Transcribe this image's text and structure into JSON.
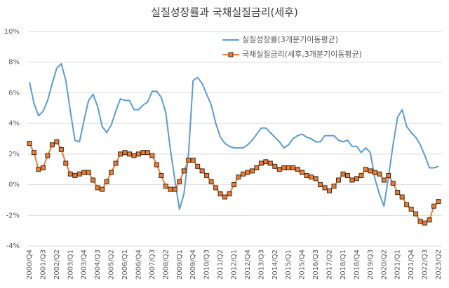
{
  "chart_data": {
    "type": "line",
    "title": "실질성장률과 국채실질금리(세후)",
    "categories": [
      "2000/Q4",
      null,
      null,
      "2001/Q3",
      null,
      null,
      "2002/Q2",
      null,
      null,
      "2003/Q1",
      null,
      null,
      "2003/Q4",
      null,
      null,
      "2004/Q3",
      null,
      null,
      "2005/Q2",
      null,
      null,
      "2006/Q1",
      null,
      null,
      "2006/Q4",
      null,
      null,
      "2007/Q3",
      null,
      null,
      "2008/Q2",
      null,
      null,
      "2009/Q1",
      null,
      null,
      "2009/Q4",
      null,
      null,
      "2010/Q3",
      null,
      null,
      "2011/Q2",
      null,
      null,
      "2012/Q1",
      null,
      null,
      "2012/Q4",
      null,
      null,
      "2013/Q3",
      null,
      null,
      "2014/Q2",
      null,
      null,
      "2015/Q1",
      null,
      null,
      "2015/Q4",
      null,
      null,
      "2016/Q3",
      null,
      null,
      "2017/Q2",
      null,
      null,
      "2018/Q1",
      null,
      null,
      "2018/Q4",
      null,
      null,
      "2019/Q3",
      null,
      null,
      "2020/Q2",
      null,
      null,
      "2021/Q1",
      null,
      null,
      "2021/Q4",
      null,
      null,
      "2022/Q3",
      null,
      null,
      "2023/Q2"
    ],
    "series": [
      {
        "name": "실질성장률(3개분기이동평균)",
        "color": "#5b9bd5",
        "values": [
          6.7,
          5.3,
          4.5,
          4.8,
          5.5,
          6.6,
          7.6,
          7.9,
          6.8,
          4.8,
          2.9,
          2.8,
          4.2,
          5.5,
          5.9,
          5.1,
          3.8,
          3.4,
          3.9,
          4.8,
          5.6,
          5.5,
          5.5,
          4.9,
          4.9,
          5.2,
          5.4,
          6.1,
          6.1,
          5.7,
          4.7,
          2.3,
          0.3,
          -1.6,
          -0.6,
          2.0,
          6.8,
          7.0,
          6.6,
          5.9,
          5.2,
          4.0,
          3.1,
          2.7,
          2.5,
          2.4,
          2.4,
          2.4,
          2.6,
          2.9,
          3.3,
          3.7,
          3.7,
          3.4,
          3.1,
          2.8,
          2.4,
          2.6,
          3.0,
          3.2,
          3.3,
          3.1,
          3.0,
          2.8,
          2.8,
          3.2,
          3.2,
          3.2,
          2.9,
          2.8,
          2.9,
          2.5,
          2.5,
          2.1,
          2.4,
          2.1,
          0.4,
          -0.6,
          -1.4,
          0.5,
          2.6,
          4.4,
          4.9,
          3.8,
          3.4,
          3.1,
          2.6,
          1.9,
          1.1,
          1.1,
          1.2
        ]
      },
      {
        "name": "국채실질금리(세후,3개분기이동평균)",
        "color": "#ed7d31",
        "marker": "square",
        "values": [
          2.7,
          2.1,
          1.0,
          1.1,
          1.9,
          2.6,
          2.8,
          2.3,
          1.4,
          0.7,
          0.6,
          0.7,
          0.8,
          0.8,
          0.3,
          -0.2,
          -0.3,
          0.2,
          0.8,
          1.4,
          2.0,
          2.1,
          2.0,
          1.9,
          2.0,
          2.1,
          2.1,
          1.9,
          1.3,
          0.6,
          -0.1,
          -0.3,
          -0.3,
          0.2,
          0.9,
          1.6,
          1.6,
          1.2,
          0.9,
          0.6,
          0.2,
          -0.2,
          -0.6,
          -0.8,
          -0.6,
          0.0,
          0.5,
          0.7,
          0.8,
          0.9,
          1.1,
          1.4,
          1.5,
          1.4,
          1.2,
          1.0,
          1.1,
          1.1,
          1.1,
          1.0,
          0.8,
          0.6,
          0.5,
          0.4,
          0.0,
          -0.2,
          -0.4,
          -0.1,
          0.3,
          0.7,
          0.6,
          0.3,
          0.4,
          0.6,
          1.0,
          0.9,
          0.8,
          0.7,
          0.3,
          0.6,
          0.1,
          -0.5,
          -0.8,
          -1.3,
          -1.6,
          -1.9,
          -2.4,
          -2.5,
          -2.3,
          -1.4,
          -1.1
        ]
      }
    ],
    "ylim": [
      -4,
      10
    ],
    "yticks": [
      {
        "value": -4,
        "label": "-4%"
      },
      {
        "value": -2,
        "label": "-2%"
      },
      {
        "value": 0,
        "label": "0%"
      },
      {
        "value": 2,
        "label": "2%"
      },
      {
        "value": 4,
        "label": "4%"
      },
      {
        "value": 6,
        "label": "6%"
      },
      {
        "value": 8,
        "label": "8%"
      },
      {
        "value": 10,
        "label": "10%"
      }
    ],
    "grid": true
  }
}
